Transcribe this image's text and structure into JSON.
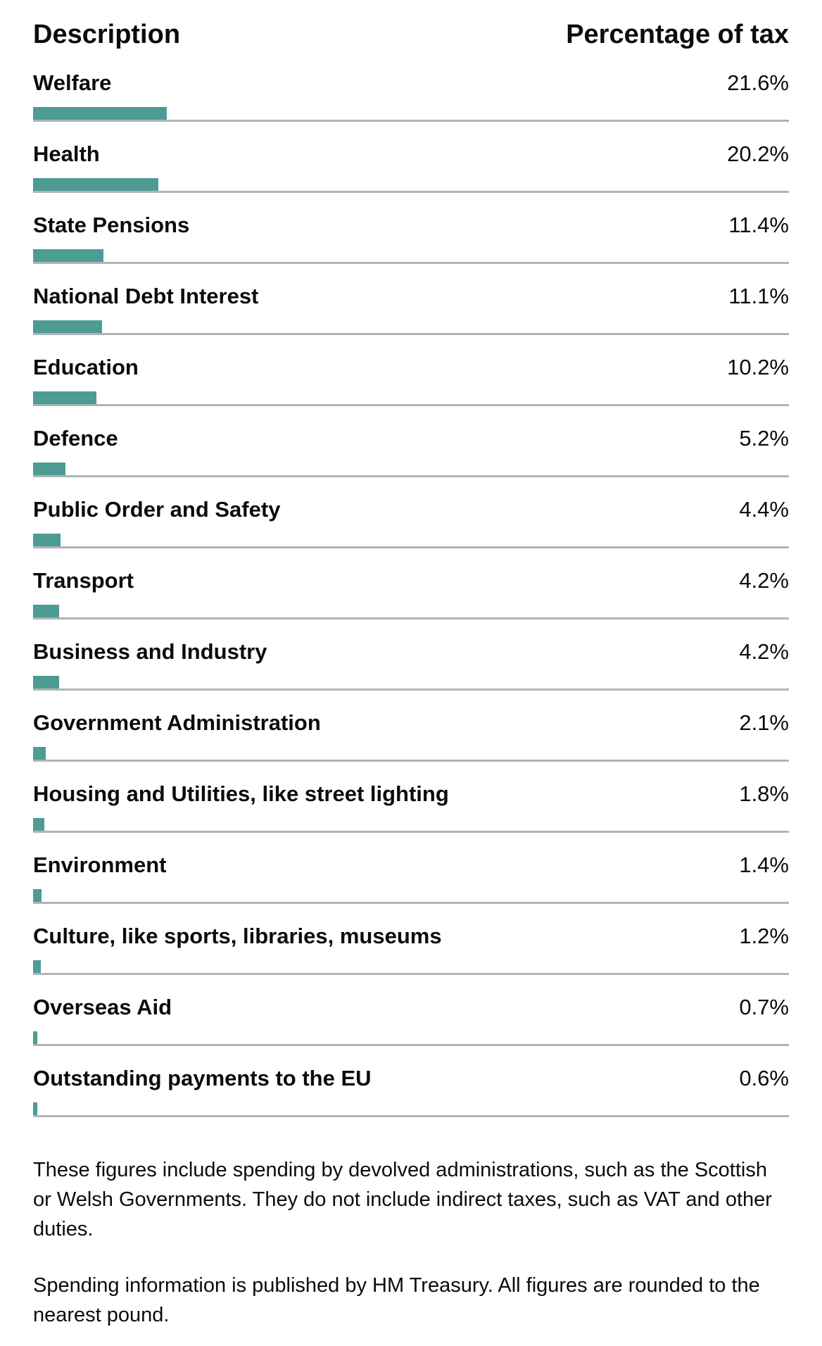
{
  "table": {
    "header_description": "Description",
    "header_percentage": "Percentage of tax",
    "bar_color": "#4c9c94",
    "rows": [
      {
        "label": "Welfare",
        "value_text": "21.6%",
        "value": 21.6
      },
      {
        "label": "Health",
        "value_text": "20.2%",
        "value": 20.2
      },
      {
        "label": "State Pensions",
        "value_text": "11.4%",
        "value": 11.4
      },
      {
        "label": "National Debt Interest",
        "value_text": "11.1%",
        "value": 11.1
      },
      {
        "label": "Education",
        "value_text": "10.2%",
        "value": 10.2
      },
      {
        "label": "Defence",
        "value_text": "5.2%",
        "value": 5.2
      },
      {
        "label": "Public Order and Safety",
        "value_text": "4.4%",
        "value": 4.4
      },
      {
        "label": "Transport",
        "value_text": "4.2%",
        "value": 4.2
      },
      {
        "label": "Business and Industry",
        "value_text": "4.2%",
        "value": 4.2
      },
      {
        "label": "Government Administration",
        "value_text": "2.1%",
        "value": 2.1
      },
      {
        "label": "Housing and Utilities, like street lighting",
        "value_text": "1.8%",
        "value": 1.8
      },
      {
        "label": "Environment",
        "value_text": "1.4%",
        "value": 1.4
      },
      {
        "label": "Culture, like sports, libraries, museums",
        "value_text": "1.2%",
        "value": 1.2
      },
      {
        "label": "Overseas Aid",
        "value_text": "0.7%",
        "value": 0.7
      },
      {
        "label": "Outstanding payments to the EU",
        "value_text": "0.6%",
        "value": 0.6
      }
    ]
  },
  "notes": {
    "paragraph_1": "These figures include spending by devolved administrations, such as the Scottish or Welsh Governments. They do not include indirect taxes, such as VAT and other duties.",
    "paragraph_2": "Spending information is published by HM Treasury. All figures are rounded to the nearest pound."
  }
}
